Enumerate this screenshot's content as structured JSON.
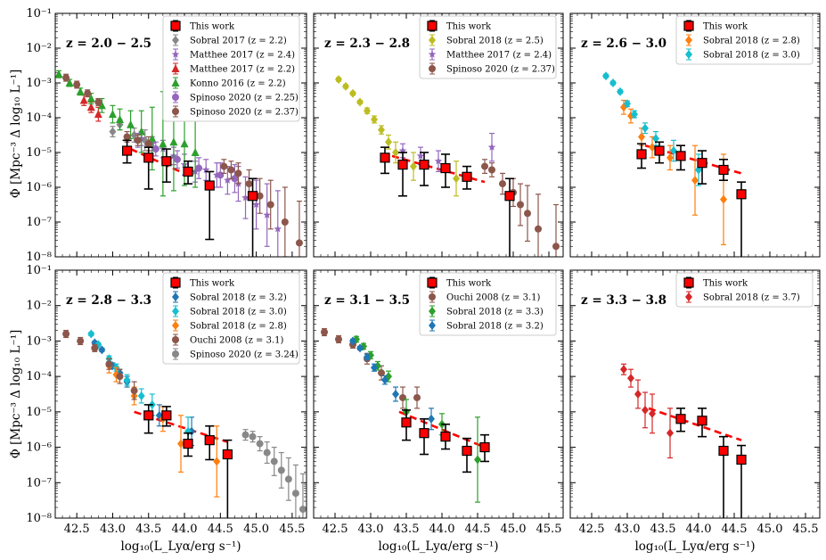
{
  "figure": {
    "x_label": "log₁₀(L_Lyα/erg s⁻¹)",
    "y_label": "Φ [Mpc⁻³ Δ log₁₀ L⁻¹]",
    "x_ticks": [
      "42.5",
      "43.0",
      "43.5",
      "44.0",
      "44.5",
      "45.0",
      "45.5"
    ],
    "y_ticks": [
      "10⁻⁸",
      "10⁻⁷",
      "10⁻⁶",
      "10⁻⁵",
      "10⁻⁴",
      "10⁻³",
      "10⁻²",
      "10⁻¹"
    ]
  },
  "chart_data": [
    {
      "type": "scatter",
      "title": "z = 2.0 − 2.5",
      "xlabel": "",
      "ylabel": "Φ [Mpc⁻³ Δ log₁₀ L⁻¹]",
      "xlim": [
        42.2,
        45.7
      ],
      "ylim_log10": [
        -8,
        -1
      ],
      "legend": "top-right",
      "fit": {
        "color": "#ff0000",
        "x": [
          43.25,
          44.1
        ],
        "logy": [
          -4.9,
          -5.7
        ]
      },
      "series": [
        {
          "name": "This work",
          "marker": "square",
          "color": "#ff0000",
          "x": [
            43.2,
            43.5,
            43.75,
            44.05,
            44.35,
            44.95
          ],
          "logy": [
            -4.95,
            -5.15,
            -5.25,
            -5.55,
            -5.95,
            -6.25
          ],
          "err_lo": [
            0.35,
            0.9,
            0.6,
            0.35,
            1.55,
            2.0
          ],
          "err_hi": [
            0.3,
            0.3,
            0.35,
            0.3,
            0.4,
            0.5
          ]
        },
        {
          "name": "Sobral 2017 (z = 2.2)",
          "marker": "diamond",
          "color": "#888888",
          "x": [
            43.0,
            43.1,
            43.3,
            43.45
          ],
          "logy": [
            -4.4,
            -4.2,
            -4.5,
            -4.65
          ],
          "err": [
            0.15,
            0.15,
            0.2,
            0.3
          ]
        },
        {
          "name": "Matthee 2017 (z = 2.4)",
          "marker": "star",
          "color": "#9467bd",
          "x": [
            43.4,
            43.55,
            43.7,
            43.85,
            44.0,
            44.15,
            44.3,
            44.45,
            44.6,
            44.75,
            44.85,
            45.0,
            45.15,
            45.3
          ],
          "logy": [
            -4.6,
            -4.75,
            -4.9,
            -5.1,
            -5.35,
            -5.55,
            -5.5,
            -5.65,
            -5.8,
            -5.9,
            -6.3,
            -6.5,
            -6.8,
            -7.2
          ],
          "err": [
            0.2,
            0.2,
            0.25,
            0.25,
            0.3,
            0.3,
            0.3,
            0.35,
            0.4,
            0.5,
            0.6,
            0.7,
            0.9,
            1.1
          ]
        },
        {
          "name": "Matthee 2017 (z = 2.2)",
          "marker": "triangle",
          "color": "#d62728",
          "x": [
            42.6,
            42.7,
            42.8
          ],
          "logy": [
            -3.5,
            -3.7,
            -3.9
          ],
          "err": [
            0.15,
            0.15,
            0.2
          ]
        },
        {
          "name": "Konno 2016 (z = 2.2)",
          "marker": "triangle",
          "color": "#2ca02c",
          "x": [
            42.25,
            42.4,
            42.55,
            42.7,
            42.85,
            43.0,
            43.1,
            43.25,
            43.4,
            43.55,
            43.7,
            43.85,
            44.0,
            44.15
          ],
          "logy": [
            -2.75,
            -3.0,
            -3.25,
            -3.45,
            -3.65,
            -3.9,
            -4.05,
            -4.2,
            -4.4,
            -4.6,
            -4.75,
            -4.7,
            -4.75,
            -5.0
          ],
          "err": [
            0.1,
            0.1,
            0.1,
            0.15,
            0.2,
            0.25,
            0.3,
            0.4,
            0.6,
            0.9,
            1.5,
            1.4,
            1.2,
            1.0
          ]
        },
        {
          "name": "Spinoso 2020 (z = 2.25)",
          "marker": "circle",
          "color": "#9467bd",
          "x": [
            43.35,
            43.6,
            43.9,
            44.2,
            44.5,
            44.7
          ],
          "logy": [
            -4.65,
            -4.9,
            -5.2,
            -5.45,
            -5.65,
            -5.75
          ],
          "err": [
            0.2,
            0.2,
            0.25,
            0.3,
            0.35,
            0.4
          ]
        },
        {
          "name": "Spinoso 2020 (z = 2.37)",
          "marker": "circle",
          "color": "#8c564b",
          "x": [
            42.35,
            42.5,
            42.65,
            42.8,
            43.2,
            43.35,
            43.5,
            44.55,
            44.65,
            44.75,
            44.9,
            45.05,
            45.2,
            45.4,
            45.6
          ],
          "logy": [
            -2.85,
            -3.05,
            -3.3,
            -3.55,
            -4.55,
            -4.65,
            -4.75,
            -5.4,
            -5.5,
            -5.6,
            -5.9,
            -6.25,
            -6.5,
            -7.0,
            -7.6
          ],
          "err": [
            0.1,
            0.1,
            0.1,
            0.1,
            0.15,
            0.15,
            0.2,
            0.2,
            0.25,
            0.3,
            0.4,
            0.5,
            0.7,
            1.0,
            1.2
          ]
        }
      ]
    },
    {
      "type": "scatter",
      "title": "z = 2.3 − 2.8",
      "xlabel": "",
      "ylabel": "",
      "xlim": [
        42.2,
        45.7
      ],
      "ylim_log10": [
        -8,
        -1
      ],
      "legend": "top-right",
      "fit": {
        "color": "#ff0000",
        "x": [
          43.3,
          44.6
        ],
        "logy": [
          -5.1,
          -5.85
        ]
      },
      "series": [
        {
          "name": "This work",
          "marker": "square",
          "color": "#ff0000",
          "x": [
            43.2,
            43.45,
            43.75,
            44.05,
            44.35,
            44.95
          ],
          "logy": [
            -5.15,
            -5.35,
            -5.35,
            -5.45,
            -5.7,
            -6.25
          ],
          "err_lo": [
            0.45,
            0.9,
            0.6,
            0.55,
            0.35,
            2.0
          ],
          "err_hi": [
            0.3,
            0.35,
            0.35,
            0.4,
            0.3,
            0.5
          ]
        },
        {
          "name": "Sobral 2018 (z = 2.5)",
          "marker": "diamond",
          "color": "#bcbd22",
          "x": [
            42.55,
            42.65,
            42.75,
            42.85,
            42.95,
            43.05,
            43.15,
            43.25,
            43.35,
            43.6,
            44.2
          ],
          "logy": [
            -2.9,
            -3.1,
            -3.3,
            -3.55,
            -3.8,
            -4.05,
            -4.35,
            -4.7,
            -5.0,
            -5.4,
            -5.75
          ],
          "err": [
            0.05,
            0.05,
            0.05,
            0.05,
            0.08,
            0.1,
            0.12,
            0.2,
            0.3,
            0.4,
            0.5
          ]
        },
        {
          "name": "Matthee 2017 (z = 2.4)",
          "marker": "star",
          "color": "#9467bd",
          "x": [
            43.45,
            43.7,
            43.95,
            44.7
          ],
          "logy": [
            -4.95,
            -5.1,
            -5.25,
            -4.85
          ],
          "err": [
            0.2,
            0.25,
            0.3,
            0.4
          ]
        },
        {
          "name": "Spinoso 2020 (z = 2.37)",
          "marker": "circle",
          "color": "#8c564b",
          "x": [
            44.6,
            44.7,
            44.85,
            45.0,
            45.1,
            45.2,
            45.35,
            45.6
          ],
          "logy": [
            -5.4,
            -5.5,
            -5.9,
            -6.15,
            -6.5,
            -6.75,
            -7.2,
            -7.7
          ],
          "err": [
            0.2,
            0.2,
            0.3,
            0.4,
            0.6,
            0.8,
            1.0,
            1.2
          ]
        }
      ]
    },
    {
      "type": "scatter",
      "title": "z = 2.6 − 3.0",
      "xlabel": "",
      "ylabel": "",
      "xlim": [
        42.2,
        45.7
      ],
      "ylim_log10": [
        -8,
        -1
      ],
      "legend": "top-right",
      "fit": {
        "color": "#ff0000",
        "x": [
          43.25,
          44.6
        ],
        "logy": [
          -4.8,
          -5.6
        ]
      },
      "series": [
        {
          "name": "This work",
          "marker": "square",
          "color": "#ff0000",
          "x": [
            43.2,
            43.45,
            43.75,
            44.05,
            44.35,
            44.6
          ],
          "logy": [
            -5.05,
            -4.95,
            -5.1,
            -5.3,
            -5.5,
            -6.2
          ],
          "err_lo": [
            0.4,
            0.35,
            0.4,
            0.6,
            0.3,
            2.0
          ],
          "err_hi": [
            0.3,
            0.25,
            0.3,
            0.35,
            0.3,
            0.35
          ]
        },
        {
          "name": "Sobral 2018 (z = 2.8)",
          "marker": "diamond",
          "color": "#ff7f0e",
          "x": [
            42.95,
            43.05,
            43.2,
            43.35,
            43.6,
            43.95,
            44.35
          ],
          "logy": [
            -3.7,
            -3.95,
            -4.55,
            -4.85,
            -5.15,
            -5.8,
            -6.35
          ],
          "err": [
            0.2,
            0.2,
            0.25,
            0.3,
            0.35,
            1.0,
            1.3
          ]
        },
        {
          "name": "Sobral 2018 (z = 3.0)",
          "marker": "diamond",
          "color": "#17becf",
          "x": [
            42.7,
            42.8,
            42.9,
            43.0,
            43.1,
            43.25,
            43.4,
            43.65,
            44.0
          ],
          "logy": [
            -2.8,
            -3.0,
            -3.25,
            -3.6,
            -3.9,
            -4.3,
            -4.6,
            -4.95,
            -5.5
          ],
          "err": [
            0.05,
            0.05,
            0.05,
            0.08,
            0.1,
            0.15,
            0.2,
            0.3,
            0.45
          ]
        }
      ]
    },
    {
      "type": "scatter",
      "title": "z = 2.8 − 3.3",
      "xlabel": "log₁₀(L_Lyα/erg s⁻¹)",
      "ylabel": "Φ [Mpc⁻³ Δ log₁₀ L⁻¹]",
      "xlim": [
        42.2,
        45.7
      ],
      "ylim_log10": [
        -8,
        -1
      ],
      "legend": "top-right",
      "fit": {
        "color": "#ff0000",
        "x": [
          43.3,
          44.6
        ],
        "logy": [
          -5.0,
          -5.85
        ]
      },
      "series": [
        {
          "name": "This work",
          "marker": "square",
          "color": "#ff0000",
          "x": [
            43.5,
            43.75,
            44.05,
            44.35,
            44.6
          ],
          "logy": [
            -5.1,
            -5.1,
            -5.9,
            -5.8,
            -6.2
          ],
          "err_lo": [
            0.5,
            0.3,
            0.35,
            0.55,
            2.0
          ],
          "err_hi": [
            0.3,
            0.25,
            0.3,
            0.4,
            0.4
          ]
        },
        {
          "name": "Sobral 2018 (z = 3.2)",
          "marker": "diamond",
          "color": "#1f77b4",
          "x": [
            42.75,
            42.85,
            43.0,
            43.1,
            43.2,
            43.65,
            44.1
          ],
          "logy": [
            -3.05,
            -3.25,
            -3.7,
            -3.9,
            -4.15,
            -5.1,
            -5.55
          ],
          "err": [
            0.05,
            0.05,
            0.08,
            0.1,
            0.15,
            0.3,
            0.4
          ]
        },
        {
          "name": "Sobral 2018 (z = 3.0)",
          "marker": "diamond",
          "color": "#17becf",
          "x": [
            42.7,
            42.8,
            42.95,
            43.05,
            43.2,
            43.4,
            43.55,
            44.05
          ],
          "logy": [
            -2.8,
            -3.1,
            -3.5,
            -3.75,
            -4.1,
            -4.55,
            -4.8,
            -5.55
          ],
          "err": [
            0.05,
            0.05,
            0.08,
            0.1,
            0.15,
            0.2,
            0.3,
            0.4
          ]
        },
        {
          "name": "Sobral 2018 (z = 2.8)",
          "marker": "diamond",
          "color": "#ff7f0e",
          "x": [
            42.95,
            43.05,
            43.3,
            43.7,
            43.95,
            44.45
          ],
          "logy": [
            -3.7,
            -3.95,
            -4.55,
            -5.2,
            -5.9,
            -6.4
          ],
          "err": [
            0.2,
            0.2,
            0.25,
            0.35,
            0.8,
            1.0
          ]
        },
        {
          "name": "Ouchi 2008 (z = 3.1)",
          "marker": "circle",
          "color": "#8c564b",
          "x": [
            42.35,
            42.55,
            42.75,
            42.95,
            43.1,
            43.3
          ],
          "logy": [
            -2.8,
            -3.0,
            -3.2,
            -3.65,
            -4.0,
            -4.4
          ],
          "err": [
            0.1,
            0.1,
            0.1,
            0.15,
            0.2,
            0.25
          ]
        },
        {
          "name": "Spinoso 2020 (z = 3.24)",
          "marker": "circle",
          "color": "#888888",
          "x": [
            44.85,
            44.95,
            45.05,
            45.15,
            45.25,
            45.35,
            45.45,
            45.55,
            45.65
          ],
          "logy": [
            -5.65,
            -5.7,
            -5.9,
            -6.15,
            -6.4,
            -6.65,
            -6.9,
            -7.3,
            -7.75
          ],
          "err": [
            0.15,
            0.15,
            0.2,
            0.3,
            0.4,
            0.5,
            0.6,
            0.8,
            1.0
          ]
        }
      ]
    },
    {
      "type": "scatter",
      "title": "z = 3.1 − 3.5",
      "xlabel": "log₁₀(L_Lyα/erg s⁻¹)",
      "ylabel": "",
      "xlim": [
        42.2,
        45.7
      ],
      "ylim_log10": [
        -8,
        -1
      ],
      "legend": "top-right",
      "fit": {
        "color": "#ff0000",
        "x": [
          43.4,
          44.6
        ],
        "logy": [
          -5.0,
          -6.0
        ]
      },
      "series": [
        {
          "name": "This work",
          "marker": "square",
          "color": "#ff0000",
          "x": [
            43.5,
            43.75,
            44.05,
            44.35,
            44.6
          ],
          "logy": [
            -5.3,
            -5.6,
            -5.7,
            -6.1,
            -6.0
          ],
          "err_lo": [
            0.5,
            0.6,
            0.35,
            0.6,
            0.4
          ],
          "err_hi": [
            0.35,
            0.4,
            0.35,
            0.35,
            0.35
          ]
        },
        {
          "name": "Ouchi 2008 (z = 3.1)",
          "marker": "circle",
          "color": "#8c564b",
          "x": [
            42.35,
            42.55,
            42.75,
            42.95,
            43.15,
            43.45,
            43.65
          ],
          "logy": [
            -2.75,
            -2.95,
            -3.1,
            -3.5,
            -3.9,
            -4.6,
            -4.6
          ],
          "err": [
            0.1,
            0.1,
            0.1,
            0.15,
            0.2,
            0.3,
            0.3
          ]
        },
        {
          "name": "Sobral 2018 (z = 3.3)",
          "marker": "diamond",
          "color": "#2ca02c",
          "x": [
            42.8,
            42.9,
            43.0,
            43.1,
            43.25,
            43.5,
            44.0,
            44.5
          ],
          "logy": [
            -2.95,
            -3.15,
            -3.4,
            -3.7,
            -4.0,
            -5.0,
            -5.35,
            -6.35
          ],
          "err": [
            0.08,
            0.08,
            0.1,
            0.12,
            0.15,
            0.35,
            0.3,
            1.2
          ]
        },
        {
          "name": "Sobral 2018 (z = 3.2)",
          "marker": "diamond",
          "color": "#1f77b4",
          "x": [
            42.75,
            42.85,
            42.95,
            43.05,
            43.2,
            43.35,
            43.85
          ],
          "logy": [
            -3.0,
            -3.2,
            -3.45,
            -3.75,
            -4.1,
            -4.5,
            -5.2
          ],
          "err": [
            0.05,
            0.05,
            0.08,
            0.1,
            0.12,
            0.2,
            0.3
          ]
        }
      ]
    },
    {
      "type": "scatter",
      "title": "z = 3.3 − 3.8",
      "xlabel": "log₁₀(L_Lyα/erg s⁻¹)",
      "ylabel": "",
      "xlim": [
        42.2,
        45.7
      ],
      "ylim_log10": [
        -8,
        -1
      ],
      "legend": "top-right",
      "fit": {
        "color": "#ff0000",
        "x": [
          43.3,
          44.6
        ],
        "logy": [
          -4.9,
          -5.8
        ]
      },
      "series": [
        {
          "name": "This work",
          "marker": "square",
          "color": "#ff0000",
          "x": [
            43.75,
            44.05,
            44.35,
            44.6
          ],
          "logy": [
            -5.2,
            -5.25,
            -6.1,
            -6.35
          ],
          "err_lo": [
            0.35,
            0.45,
            2.0,
            2.0
          ],
          "err_hi": [
            0.3,
            0.35,
            0.4,
            0.4
          ]
        },
        {
          "name": "Sobral 2018 (z = 3.7)",
          "marker": "diamond",
          "color": "#d62728",
          "x": [
            42.95,
            43.05,
            43.15,
            43.25,
            43.35,
            43.6
          ],
          "logy": [
            -3.8,
            -4.05,
            -4.5,
            -4.95,
            -5.05,
            -5.6
          ],
          "err": [
            0.15,
            0.25,
            0.4,
            0.5,
            0.55,
            0.7
          ]
        }
      ]
    }
  ]
}
